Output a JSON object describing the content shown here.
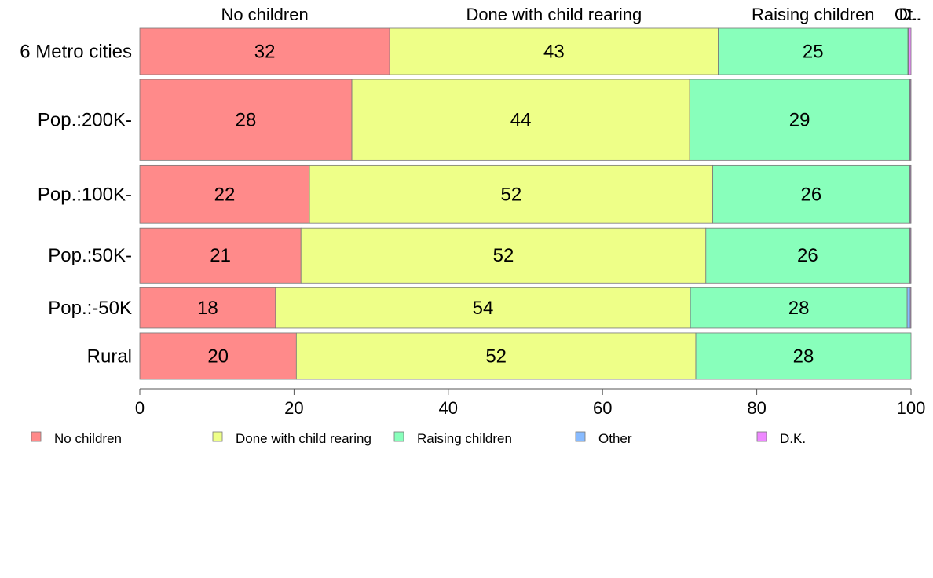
{
  "chart_data": {
    "type": "bar",
    "orientation": "horizontal",
    "stacked": true,
    "categories": [
      "6 Metro cities",
      "Pop.:200K-",
      "Pop.:100K-",
      "Pop.:50K-",
      "Pop.:-50K",
      "Rural"
    ],
    "row_weights": [
      0.8,
      1.4,
      1.0,
      0.95,
      0.7,
      0.8
    ],
    "series": [
      {
        "name": "No children",
        "values": [
          32.4,
          27.5,
          22.0,
          20.9,
          17.6,
          20.3
        ],
        "labels": [
          "32",
          "28",
          "22",
          "21",
          "18",
          "20"
        ],
        "color": "#ff8a8a"
      },
      {
        "name": "Done with child rearing",
        "values": [
          42.6,
          43.8,
          52.3,
          52.5,
          53.8,
          51.8
        ],
        "labels": [
          "43",
          "44",
          "52",
          "52",
          "54",
          "52"
        ],
        "color": "#eeff88"
      },
      {
        "name": "Raising children",
        "values": [
          24.6,
          28.5,
          25.5,
          26.4,
          28.1,
          27.9
        ],
        "labels": [
          "25",
          "29",
          "26",
          "26",
          "28",
          "28"
        ],
        "color": "#88ffbb"
      },
      {
        "name": "Other",
        "values": [
          0.1,
          0.1,
          0.1,
          0.1,
          0.4,
          0.0
        ],
        "labels": [
          "",
          "",
          "",
          "",
          "",
          ""
        ],
        "color": "#88bbff"
      },
      {
        "name": "D.K.",
        "values": [
          0.3,
          0.1,
          0.1,
          0.1,
          0.1,
          0.0
        ],
        "labels": [
          "",
          "",
          "",
          "",
          "",
          ""
        ],
        "color": "#ee88ff"
      }
    ],
    "top_labels": [
      "No children",
      "Done with child rearing",
      "Raising children",
      "Ot..",
      "D.."
    ],
    "xlim": [
      0,
      100
    ],
    "xticks": [
      0,
      20,
      40,
      60,
      80,
      100
    ],
    "grid": false,
    "legend_position": "bottom"
  }
}
